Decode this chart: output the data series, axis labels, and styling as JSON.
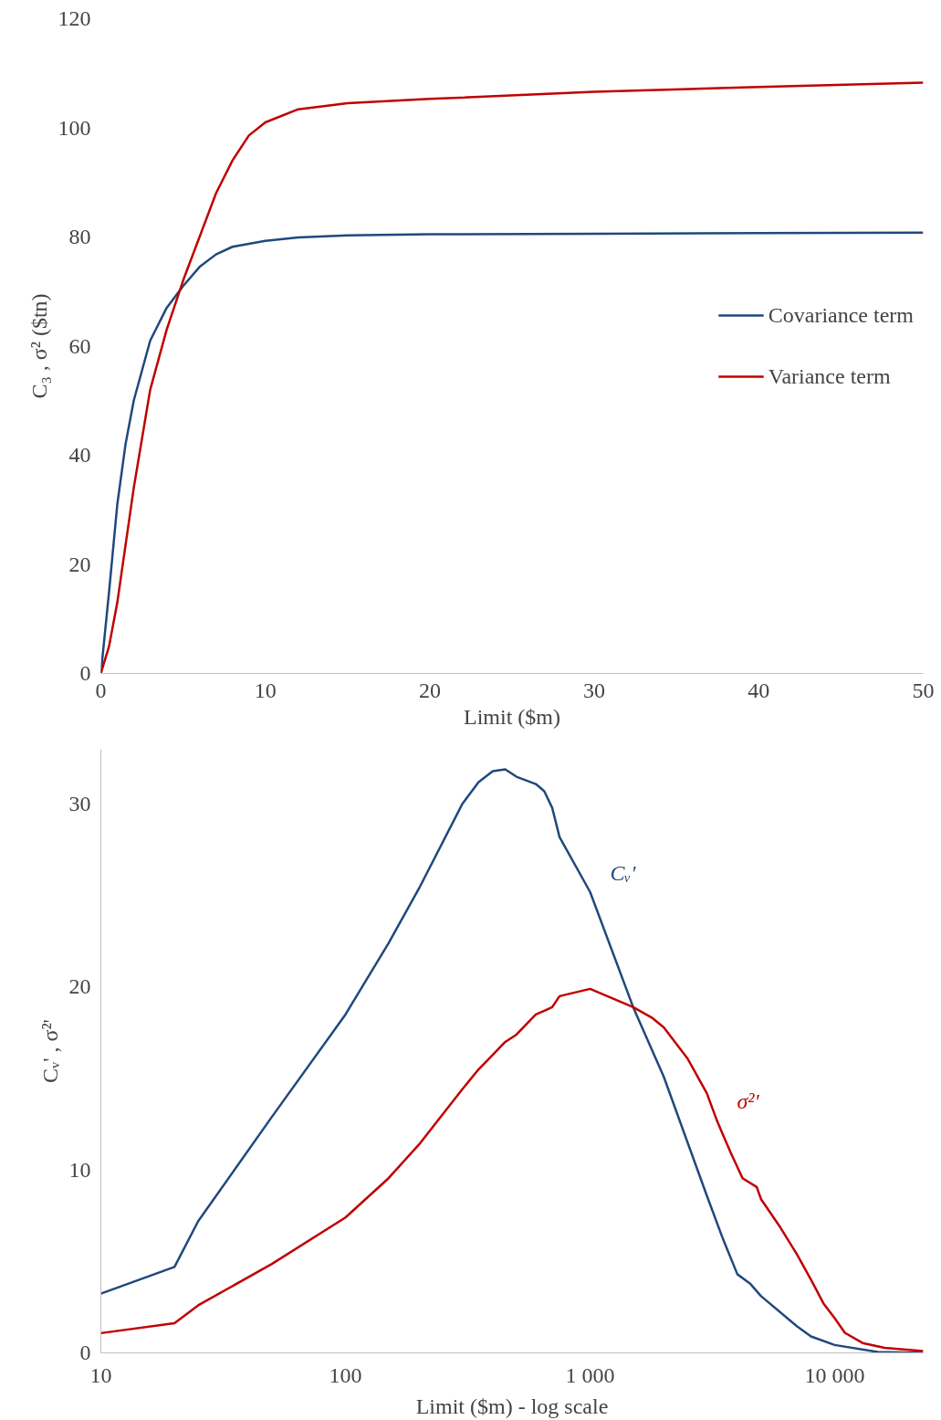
{
  "chart_data": [
    {
      "type": "line",
      "xlabel": "Limit ($m)",
      "ylabel": "C₃ , σ² ($tn)",
      "xlim": [
        0,
        50
      ],
      "ylim": [
        0,
        120
      ],
      "xticks": [
        0,
        10,
        20,
        30,
        40,
        50
      ],
      "yticks": [
        0,
        20,
        40,
        60,
        80,
        100,
        120
      ],
      "grid": false,
      "legend": "right",
      "series": [
        {
          "name": "Covariance term",
          "color": "#1f497d",
          "x": [
            0,
            0.5,
            1,
            1.5,
            2,
            3,
            4,
            5,
            6,
            7,
            8,
            10,
            12,
            15,
            20,
            30,
            40,
            50
          ],
          "values": [
            0,
            15,
            31,
            42,
            50,
            61,
            67,
            71,
            74.5,
            76.8,
            78.2,
            79.3,
            79.9,
            80.3,
            80.5,
            80.6,
            80.7,
            80.8
          ]
        },
        {
          "name": "Variance term",
          "color": "#c00000",
          "x": [
            0,
            0.5,
            1,
            2,
            3,
            4,
            5,
            6,
            7,
            8,
            9,
            10,
            12,
            15,
            20,
            30,
            40,
            50
          ],
          "values": [
            0,
            5,
            13,
            34,
            52,
            63,
            72,
            80,
            88,
            94,
            98.6,
            101,
            103.4,
            104.5,
            105.3,
            106.6,
            107.5,
            108.3
          ]
        }
      ]
    },
    {
      "type": "line",
      "xlabel": "Limit ($m) - log scale",
      "ylabel": "Cᵥ' , σ²'",
      "log": "x",
      "xlim": [
        10,
        23000
      ],
      "ylim": [
        0,
        33
      ],
      "xticks": [
        10,
        100,
        {
          "value": 1000,
          "label": "1 000"
        },
        {
          "value": 10000,
          "label": "10 000"
        }
      ],
      "yticks": [
        0,
        10,
        20,
        30
      ],
      "grid": false,
      "series": [
        {
          "name": "Cᵥ'",
          "color": "#1f497d",
          "x": [
            10,
            20,
            25,
            50,
            100,
            150,
            200,
            300,
            350,
            400,
            450,
            500,
            600,
            650,
            700,
            750,
            1000,
            1500,
            2000,
            3000,
            3500,
            4000,
            4500,
            5000,
            7000,
            8000,
            10000,
            15000,
            23000
          ],
          "values": [
            3.24,
            4.7,
            7.2,
            12.9,
            18.5,
            22.4,
            25.4,
            30,
            31.2,
            31.8,
            31.9,
            31.5,
            31.1,
            30.7,
            29.8,
            28.2,
            25.2,
            18.9,
            15.1,
            8.6,
            6.2,
            4.3,
            3.8,
            3.1,
            1.46,
            0.9,
            0.43,
            0.05,
            0
          ]
        },
        {
          "name": "σ²'",
          "color": "#c00000",
          "x": [
            10,
            20,
            25,
            50,
            100,
            150,
            200,
            300,
            350,
            400,
            450,
            500,
            600,
            650,
            700,
            750,
            1000,
            1500,
            1800,
            2000,
            2500,
            3000,
            3300,
            3500,
            3800,
            4200,
            4800,
            5000,
            6000,
            7000,
            8000,
            9000,
            10000,
            11000,
            13000,
            16000,
            23000
          ],
          "values": [
            1.08,
            1.62,
            2.6,
            4.86,
            7.4,
            9.55,
            11.4,
            14.4,
            15.5,
            16.3,
            17,
            17.4,
            18.5,
            18.7,
            18.9,
            19.5,
            19.9,
            18.9,
            18.3,
            17.8,
            16.1,
            14.2,
            12.7,
            11.9,
            10.8,
            9.55,
            9.07,
            8.4,
            6.85,
            5.4,
            4,
            2.7,
            1.9,
            1.1,
            0.54,
            0.27,
            0.1
          ]
        }
      ]
    }
  ]
}
